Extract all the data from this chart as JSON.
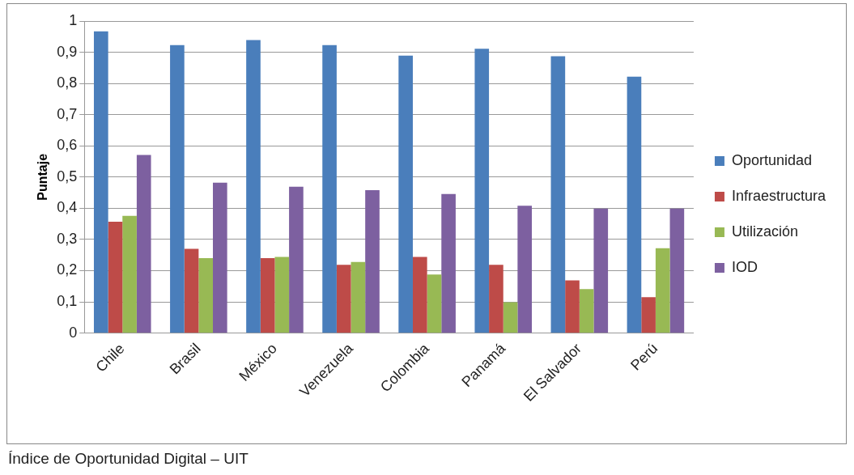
{
  "chart_data": {
    "type": "bar",
    "ylabel": "Puntaje",
    "categories": [
      "Chile",
      "Brasil",
      "México",
      "Venezuela",
      "Colombia",
      "Panamá",
      "El Salvador",
      "Perú"
    ],
    "series": [
      {
        "name": "Oportunidad",
        "color": "#4a7ebb",
        "values": [
          0.967,
          0.923,
          0.939,
          0.923,
          0.889,
          0.911,
          0.887,
          0.822
        ]
      },
      {
        "name": "Infraestructura",
        "color": "#be4b48",
        "values": [
          0.357,
          0.27,
          0.24,
          0.219,
          0.244,
          0.219,
          0.169,
          0.115
        ]
      },
      {
        "name": "Utilización",
        "color": "#98b954",
        "values": [
          0.376,
          0.24,
          0.244,
          0.228,
          0.188,
          0.099,
          0.141,
          0.272
        ]
      },
      {
        "name": "IOD",
        "color": "#7d60a0",
        "values": [
          0.571,
          0.482,
          0.469,
          0.458,
          0.446,
          0.408,
          0.399,
          0.399
        ]
      }
    ],
    "ylim": [
      0,
      1
    ],
    "yticks": [
      {
        "value": 0,
        "label": "0"
      },
      {
        "value": 0.1,
        "label": "0,1"
      },
      {
        "value": 0.2,
        "label": "0,2"
      },
      {
        "value": 0.3,
        "label": "0,3"
      },
      {
        "value": 0.4,
        "label": "0,4"
      },
      {
        "value": 0.5,
        "label": "0,5"
      },
      {
        "value": 0.6,
        "label": "0,6"
      },
      {
        "value": 0.7,
        "label": "0,7"
      },
      {
        "value": 0.8,
        "label": "0,8"
      },
      {
        "value": 0.9,
        "label": "0,9"
      },
      {
        "value": 1,
        "label": "1"
      }
    ],
    "grid": "y",
    "legend": "right",
    "annotations": [
      "Índice de Oportunidad Digital – UIT"
    ]
  }
}
